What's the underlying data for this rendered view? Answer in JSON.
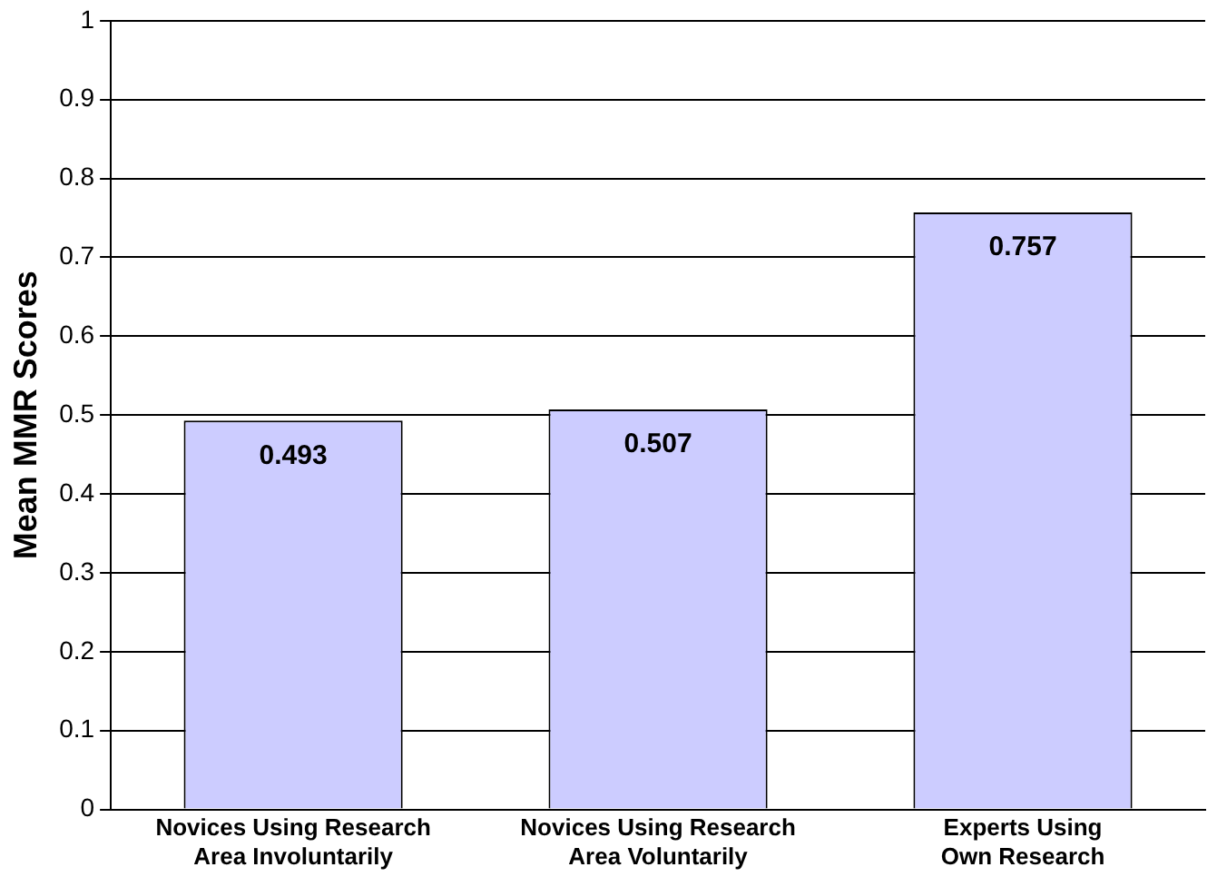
{
  "chart_data": {
    "type": "bar",
    "ylabel": "Mean MMR Scores",
    "categories": [
      "Novices Using Research Area Involuntarily",
      "Novices Using Research Area Voluntarily",
      "Experts Using Own Research"
    ],
    "values": [
      0.493,
      0.507,
      0.757
    ],
    "color": "#ccccff",
    "ylim": [
      0,
      1
    ],
    "yticks": [
      0,
      0.1,
      0.2,
      0.3,
      0.4,
      0.5,
      0.6,
      0.7,
      0.8,
      0.9,
      1
    ],
    "grid": "y",
    "data_labels": true,
    "legend": false
  }
}
